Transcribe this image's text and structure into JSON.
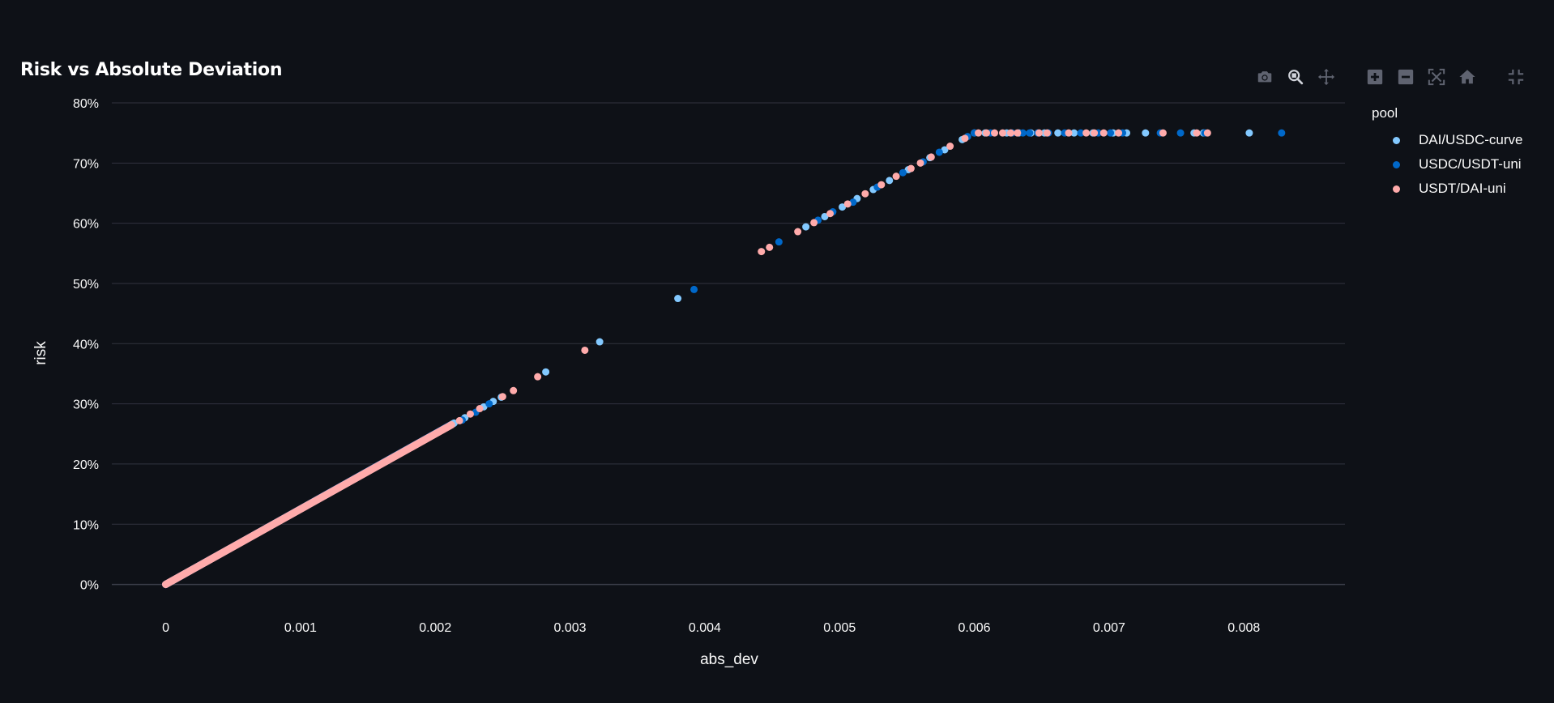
{
  "toolbar": {
    "buttons": [
      {
        "name": "camera-icon",
        "title": "Download plot as a png"
      },
      {
        "name": "zoom-icon",
        "title": "Zoom"
      },
      {
        "name": "pan-icon",
        "title": "Pan"
      },
      {
        "name": "zoom-in-icon",
        "title": "Zoom in"
      },
      {
        "name": "zoom-out-icon",
        "title": "Zoom out"
      },
      {
        "name": "autoscale-icon",
        "title": "Autoscale"
      },
      {
        "name": "home-icon",
        "title": "Reset axes"
      },
      {
        "name": "fullscreen-exit-icon",
        "title": "Exit fullscreen"
      }
    ],
    "icon_color": "#5f6370",
    "active_icon_color": "#d0d3da"
  },
  "chart_data": {
    "type": "scatter",
    "title": "Risk vs Absolute Deviation",
    "xlabel": "abs_dev",
    "ylabel": "risk",
    "xlim": [
      -0.0004,
      0.00875
    ],
    "ylim": [
      -0.0517,
      0.8
    ],
    "x_ticks": [
      0,
      0.001,
      0.002,
      0.003,
      0.004,
      0.005,
      0.006,
      0.007,
      0.008
    ],
    "x_tick_labels": [
      "0",
      "0.001",
      "0.002",
      "0.003",
      "0.004",
      "0.005",
      "0.006",
      "0.007",
      "0.008"
    ],
    "y_ticks": [
      0,
      0.1,
      0.2,
      0.3,
      0.4,
      0.5,
      0.6,
      0.7,
      0.8
    ],
    "y_tick_labels": [
      "0%",
      "10%",
      "20%",
      "30%",
      "40%",
      "50%",
      "60%",
      "70%",
      "80%"
    ],
    "grid": "horizontal",
    "legend_title": "pool",
    "legend_position": "right",
    "background": "#0e1117",
    "grid_color": "#31333f",
    "series": [
      {
        "name": "DAI/USDC-curve",
        "color": "#83c9ff",
        "dense_segment": [
          [
            0.0,
            0.0
          ],
          [
            0.00214,
            0.268
          ]
        ],
        "points": [
          [
            0.00222,
            0.277
          ],
          [
            0.00236,
            0.295
          ],
          [
            0.00243,
            0.304
          ],
          [
            0.00249,
            0.311
          ],
          [
            0.00282,
            0.353
          ],
          [
            0.00322,
            0.403
          ],
          [
            0.0038,
            0.475
          ],
          [
            0.00475,
            0.594
          ],
          [
            0.00489,
            0.611
          ],
          [
            0.00502,
            0.627
          ],
          [
            0.00513,
            0.641
          ],
          [
            0.00525,
            0.656
          ],
          [
            0.00537,
            0.671
          ],
          [
            0.00551,
            0.689
          ],
          [
            0.00567,
            0.709
          ],
          [
            0.00578,
            0.722
          ],
          [
            0.00591,
            0.739
          ],
          [
            0.006,
            0.75
          ],
          [
            0.00608,
            0.75
          ],
          [
            0.00624,
            0.75
          ],
          [
            0.00633,
            0.75
          ],
          [
            0.00642,
            0.75
          ],
          [
            0.00652,
            0.75
          ],
          [
            0.00662,
            0.75
          ],
          [
            0.00674,
            0.75
          ],
          [
            0.00688,
            0.75
          ],
          [
            0.00703,
            0.75
          ],
          [
            0.00713,
            0.75
          ],
          [
            0.00727,
            0.75
          ],
          [
            0.00763,
            0.75
          ],
          [
            0.0077,
            0.75
          ],
          [
            0.00804,
            0.75
          ]
        ]
      },
      {
        "name": "USDC/USDT-uni",
        "color": "#0068c9",
        "dense_segment": [
          [
            0.0,
            0.0
          ],
          [
            0.0021,
            0.263
          ]
        ],
        "points": [
          [
            0.0022,
            0.273
          ],
          [
            0.0023,
            0.286
          ],
          [
            0.0024,
            0.3
          ],
          [
            0.00392,
            0.49
          ],
          [
            0.00455,
            0.569
          ],
          [
            0.00484,
            0.605
          ],
          [
            0.00495,
            0.619
          ],
          [
            0.0051,
            0.635
          ],
          [
            0.00528,
            0.66
          ],
          [
            0.00547,
            0.684
          ],
          [
            0.00562,
            0.702
          ],
          [
            0.00574,
            0.718
          ],
          [
            0.00595,
            0.744
          ],
          [
            0.006,
            0.75
          ],
          [
            0.00612,
            0.75
          ],
          [
            0.00628,
            0.75
          ],
          [
            0.00636,
            0.75
          ],
          [
            0.00641,
            0.75
          ],
          [
            0.00647,
            0.75
          ],
          [
            0.00655,
            0.75
          ],
          [
            0.00667,
            0.75
          ],
          [
            0.00679,
            0.75
          ],
          [
            0.00692,
            0.75
          ],
          [
            0.00701,
            0.75
          ],
          [
            0.0071,
            0.75
          ],
          [
            0.00738,
            0.75
          ],
          [
            0.00753,
            0.75
          ],
          [
            0.00771,
            0.75
          ],
          [
            0.00828,
            0.75
          ]
        ]
      },
      {
        "name": "USDT/DAI-uni",
        "color": "#ffabab",
        "dense_segment": [
          [
            0.0,
            0.0
          ],
          [
            0.00212,
            0.265
          ]
        ],
        "points": [
          [
            0.00218,
            0.272
          ],
          [
            0.00226,
            0.283
          ],
          [
            0.00233,
            0.292
          ],
          [
            0.0025,
            0.312
          ],
          [
            0.00258,
            0.322
          ],
          [
            0.00276,
            0.345
          ],
          [
            0.00311,
            0.389
          ],
          [
            0.00442,
            0.553
          ],
          [
            0.00448,
            0.56
          ],
          [
            0.00469,
            0.586
          ],
          [
            0.00481,
            0.601
          ],
          [
            0.00493,
            0.616
          ],
          [
            0.00506,
            0.632
          ],
          [
            0.00519,
            0.649
          ],
          [
            0.00531,
            0.664
          ],
          [
            0.00542,
            0.678
          ],
          [
            0.00553,
            0.691
          ],
          [
            0.0056,
            0.7
          ],
          [
            0.00568,
            0.71
          ],
          [
            0.00582,
            0.728
          ],
          [
            0.00593,
            0.741
          ],
          [
            0.00603,
            0.75
          ],
          [
            0.00609,
            0.75
          ],
          [
            0.00615,
            0.75
          ],
          [
            0.00621,
            0.75
          ],
          [
            0.00627,
            0.75
          ],
          [
            0.00632,
            0.75
          ],
          [
            0.00648,
            0.75
          ],
          [
            0.00654,
            0.75
          ],
          [
            0.0067,
            0.75
          ],
          [
            0.00683,
            0.75
          ],
          [
            0.00689,
            0.75
          ],
          [
            0.00696,
            0.75
          ],
          [
            0.00707,
            0.75
          ],
          [
            0.0074,
            0.75
          ],
          [
            0.00765,
            0.75
          ],
          [
            0.00773,
            0.75
          ]
        ]
      }
    ]
  }
}
